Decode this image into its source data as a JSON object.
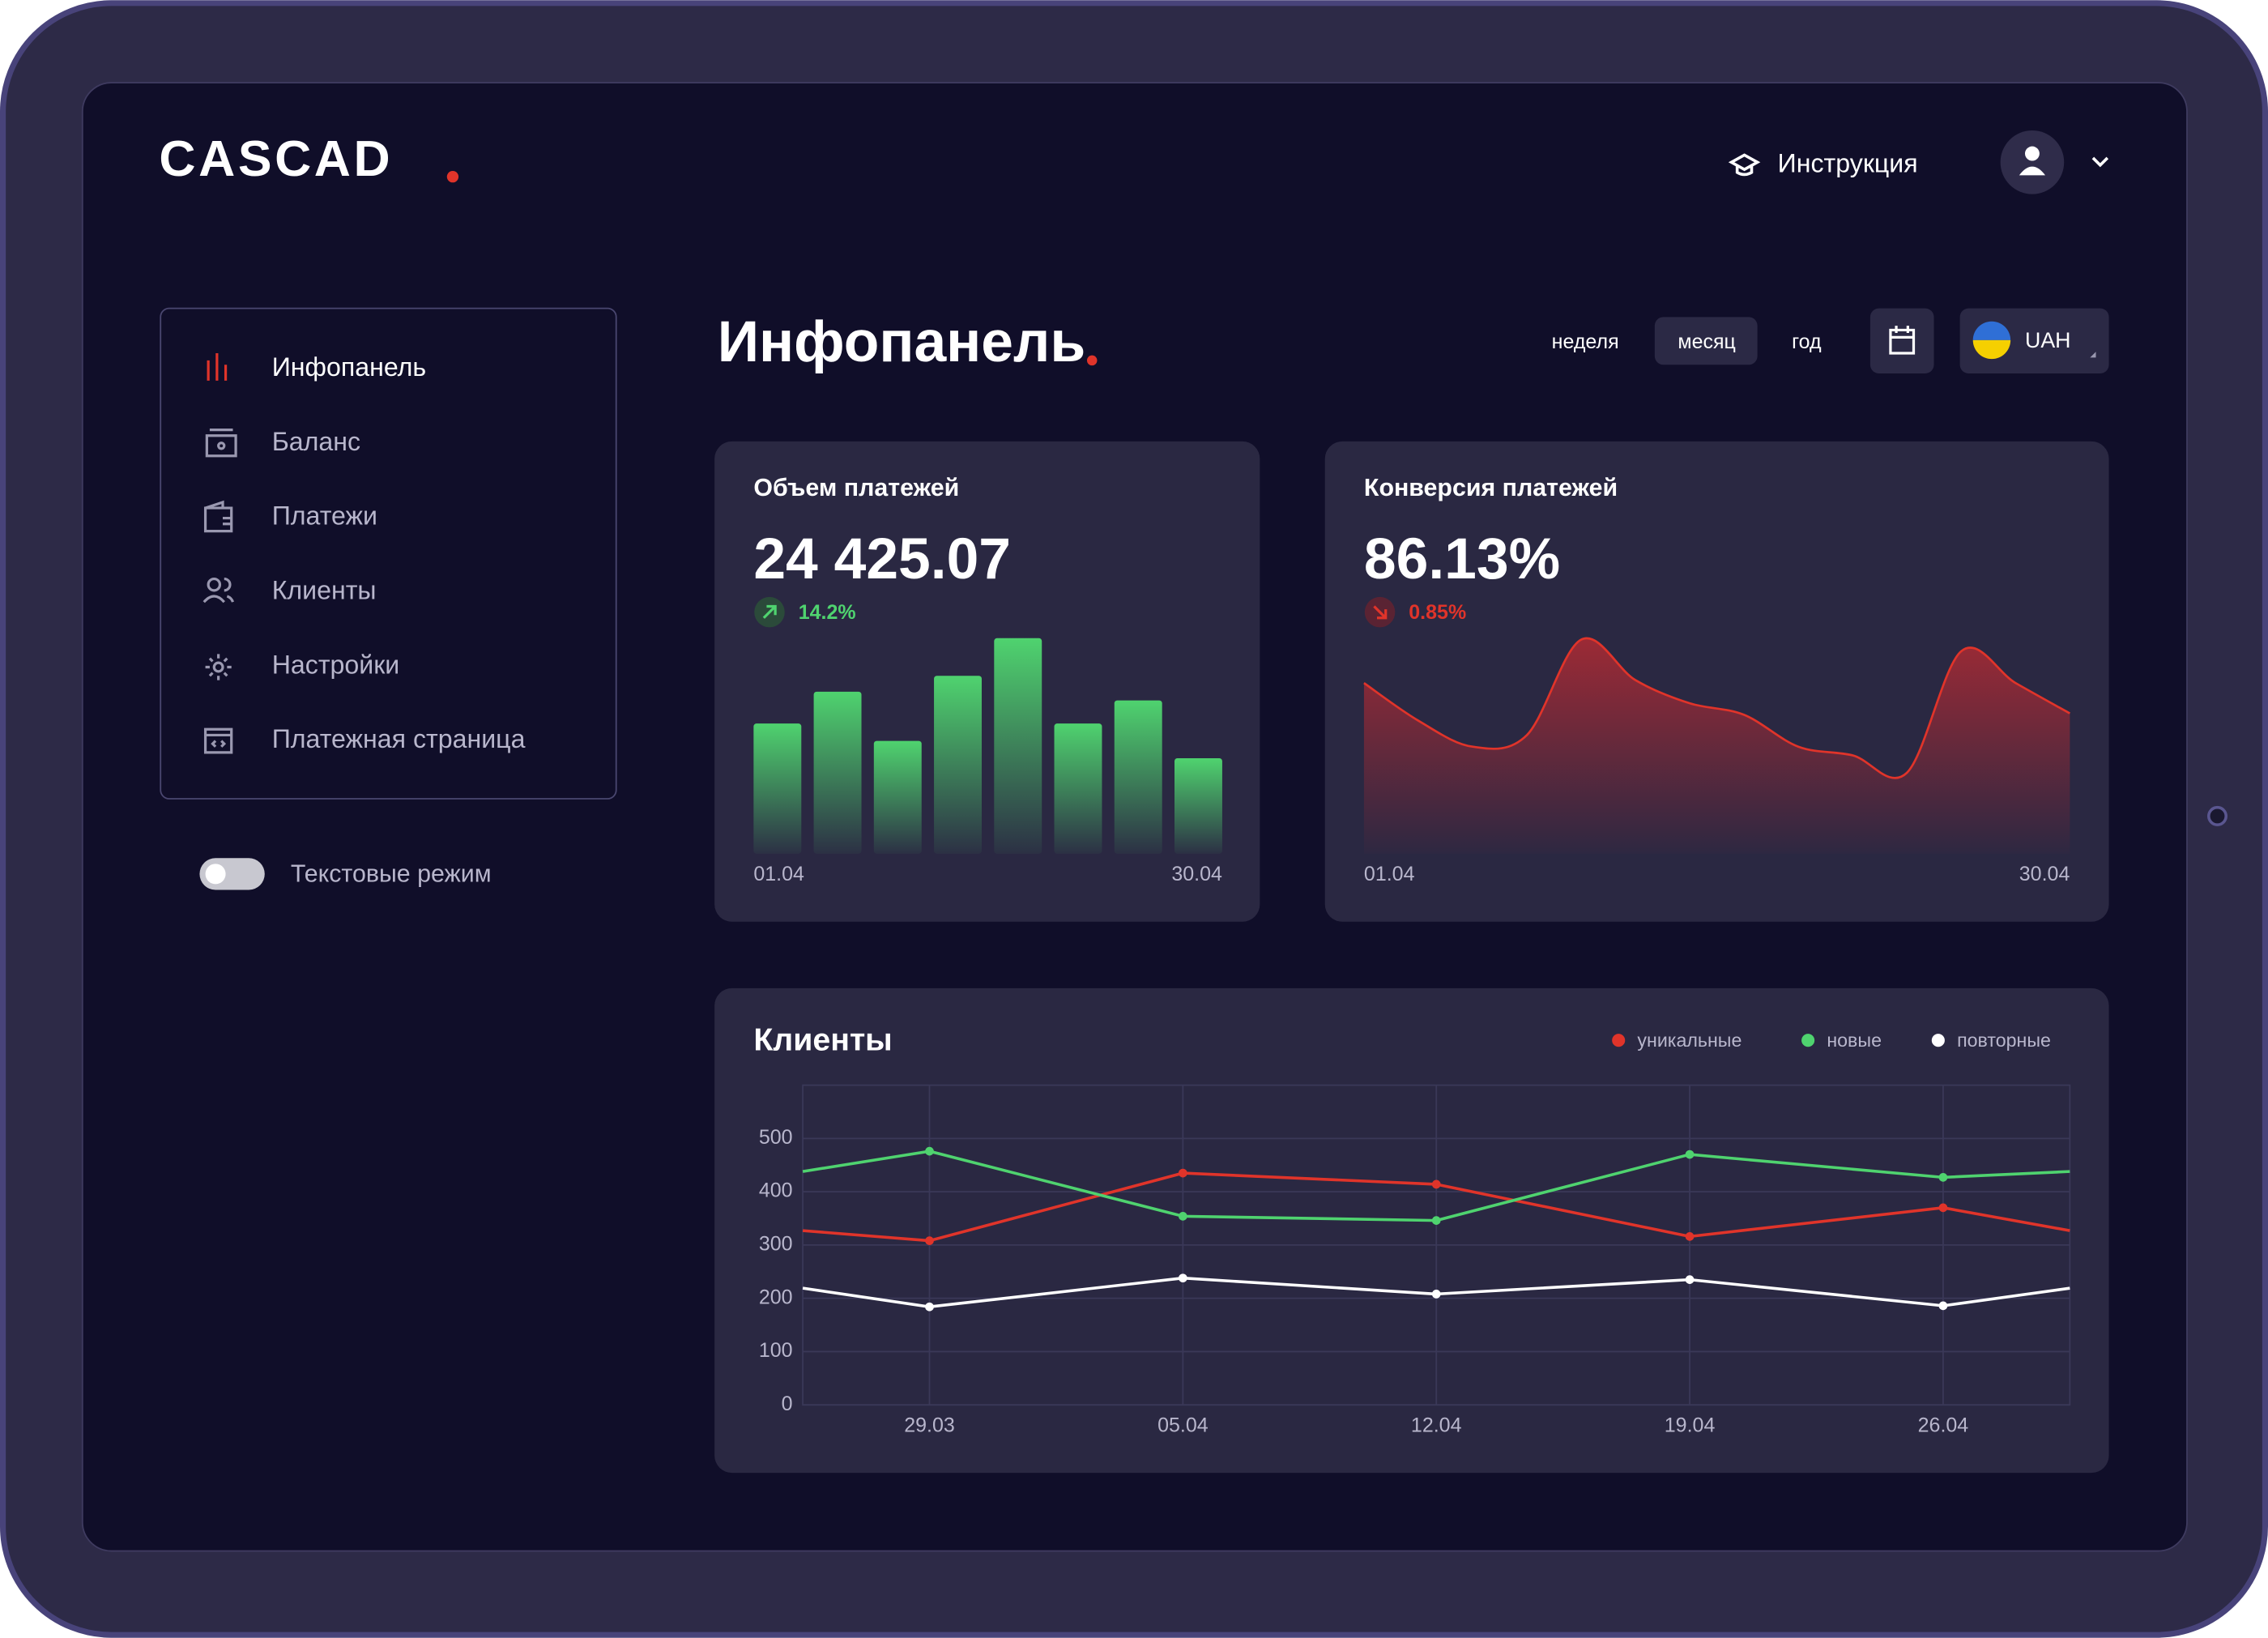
{
  "header": {
    "logo": "CASCAD",
    "help": "Инструкция"
  },
  "sidebar": {
    "menu": [
      "Инфопанель",
      "Баланс",
      "Платежи",
      "Клиенты",
      "Настройки",
      "Платежная страница"
    ],
    "toggle": "Текстовые режим"
  },
  "toolbar": {
    "title": "Инфопанель",
    "periods": [
      "неделя",
      "месяц",
      "год"
    ],
    "currency": "UAH"
  },
  "chart_data": [
    {
      "type": "bar",
      "title": "Объем платежей",
      "headline": "24 425.07",
      "change": "14.2%",
      "categories": [
        "01.04",
        null,
        null,
        null,
        null,
        null,
        null,
        "30.04"
      ],
      "values": [
        90,
        112,
        78,
        123,
        149,
        90,
        106,
        66
      ],
      "color": "#4fd36f",
      "ylim": [
        0,
        150
      ]
    },
    {
      "type": "area",
      "title": "Конверсия платежей",
      "headline": "86.13%",
      "change": "0.85%",
      "categories": [
        "01.04",
        null,
        null,
        null,
        null,
        null,
        null,
        null,
        null,
        null,
        null,
        null,
        null,
        "30.04"
      ],
      "values": [
        118,
        92,
        74,
        82,
        148,
        120,
        104,
        96,
        74,
        68,
        56,
        140,
        118,
        97
      ],
      "color": "#e0342a",
      "ylim": [
        0,
        150
      ]
    },
    {
      "type": "line",
      "title": "Клиенты",
      "categories": [
        null,
        "29.03",
        "05.04",
        "12.04",
        "19.04",
        "26.04",
        null
      ],
      "series": [
        {
          "name": "уникальные",
          "color": "#e0342a",
          "values": [
            327,
            308,
            435,
            414,
            316,
            370,
            327
          ]
        },
        {
          "name": "новые",
          "color": "#4fd36f",
          "values": [
            438,
            476,
            354,
            346,
            470,
            427,
            438
          ]
        },
        {
          "name": "повторные",
          "color": "#ffffff",
          "values": [
            219,
            184,
            238,
            208,
            235,
            186,
            219
          ]
        }
      ],
      "ylim": [
        0,
        600
      ],
      "yticks": [
        0,
        100,
        200,
        300,
        400,
        500
      ],
      "grid": true
    }
  ]
}
